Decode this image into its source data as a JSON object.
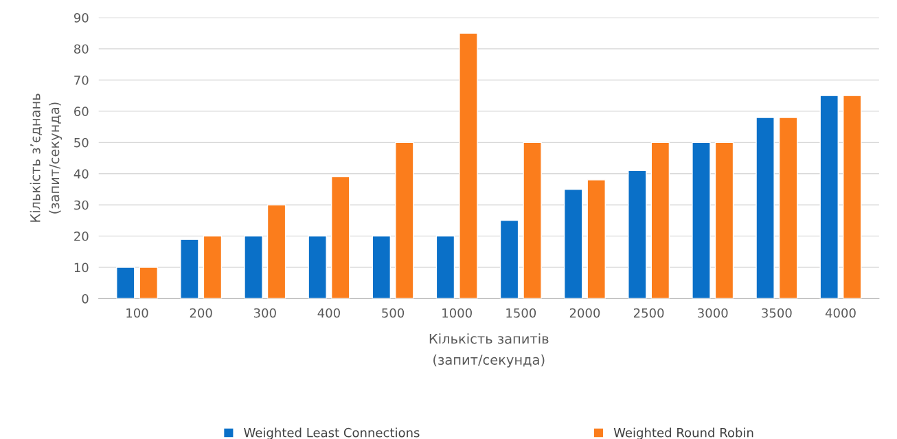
{
  "chart_data": {
    "type": "bar",
    "categories": [
      "100",
      "200",
      "300",
      "400",
      "500",
      "1000",
      "1500",
      "2000",
      "2500",
      "3000",
      "3500",
      "4000"
    ],
    "series": [
      {
        "name": "Weighted Least Connections",
        "color": "#0a70c8",
        "values": [
          10,
          19,
          20,
          20,
          20,
          20,
          25,
          35,
          41,
          50,
          58,
          65
        ]
      },
      {
        "name": "Weighted Round Robin",
        "color": "#fb7d1c",
        "values": [
          10,
          20,
          30,
          39,
          50,
          85,
          50,
          38,
          50,
          50,
          58,
          65
        ]
      }
    ],
    "xlabel": "Кількість запитів\n(запит/секунда)",
    "ylabel": "Кількість з’єднань\n(запит/секунда)",
    "ylim": [
      0,
      90
    ],
    "yticks": [
      0,
      10,
      20,
      30,
      40,
      50,
      60,
      70,
      80,
      90
    ],
    "grid": "y",
    "legend": "bottom"
  }
}
